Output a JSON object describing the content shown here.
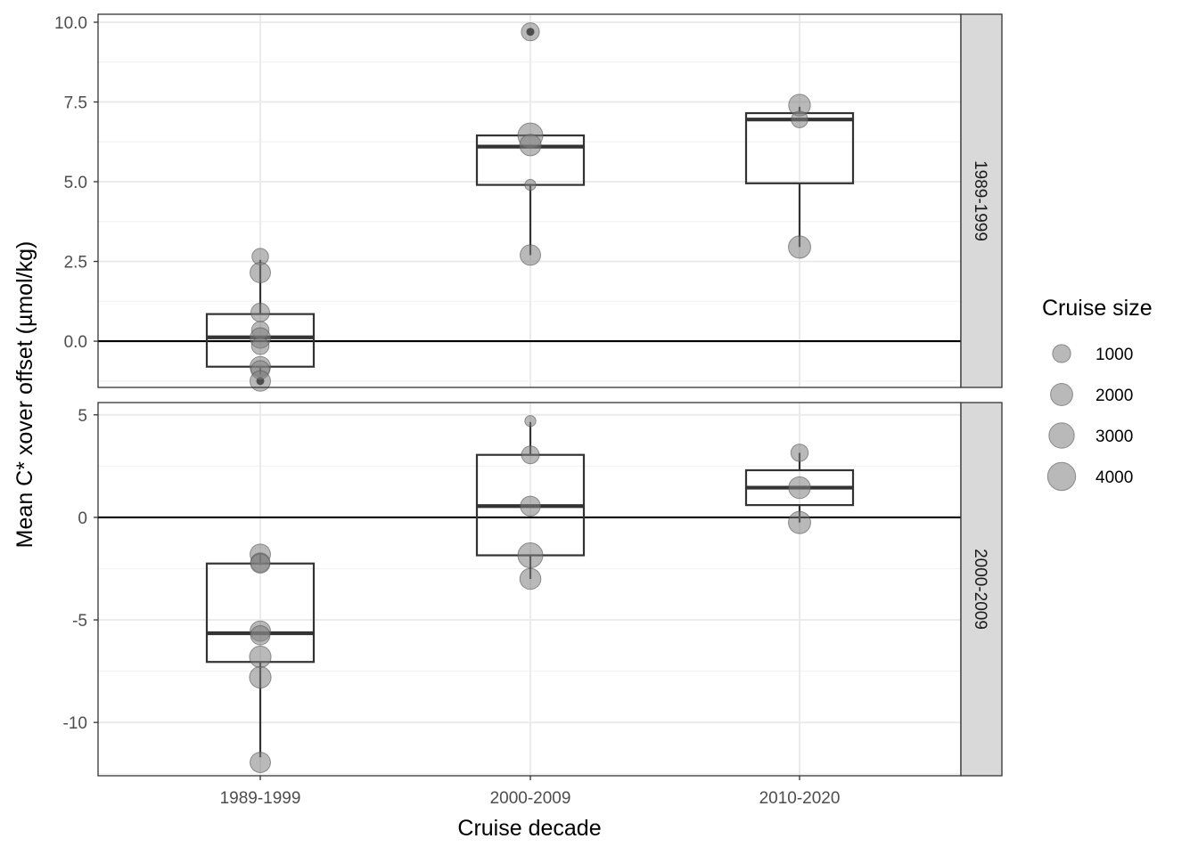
{
  "chart_data": {
    "type": "boxplot",
    "xlabel": "Cruise decade",
    "ylabel": "Mean C* xover offset (µmol/kg)",
    "categories": [
      "1989-1999",
      "2000-2009",
      "2010-2020"
    ],
    "legend": {
      "title": "Cruise size",
      "placement": "right",
      "entries": [
        {
          "label": "1000",
          "value": 1000
        },
        {
          "label": "2000",
          "value": 2000
        },
        {
          "label": "3000",
          "value": 3000
        },
        {
          "label": "4000",
          "value": 4000
        }
      ]
    },
    "colors": {
      "point_fill": "#808080",
      "point_stroke": "#555555",
      "box_stroke": "#333333",
      "grid_major": "#ebebeb",
      "grid_minor": "#f3f3f3",
      "strip_bg": "#d9d9d9",
      "zero_line": "#000000"
    },
    "panels": [
      {
        "strip_label": "1989-1999",
        "ylim": [
          -1.45,
          10.25
        ],
        "yticks": [
          0,
          2.5,
          5,
          7.5,
          10
        ],
        "ytick_labels": [
          "0.0",
          "2.5",
          "5.0",
          "7.5",
          "10.0"
        ],
        "hline": 0,
        "boxes": [
          {
            "category": "1989-1999",
            "q1": -0.8,
            "median": 0.12,
            "q3": 0.85,
            "whisker_low": -1.05,
            "whisker_high": 2.55
          },
          {
            "category": "2000-2009",
            "q1": 4.9,
            "median": 6.1,
            "q3": 6.45,
            "whisker_low": 2.7,
            "whisker_high": 6.45
          },
          {
            "category": "2010-2020",
            "q1": 4.95,
            "median": 6.95,
            "q3": 7.15,
            "whisker_low": 2.95,
            "whisker_high": 7.35
          }
        ],
        "outliers": [
          {
            "category": "1989-1999",
            "y": -1.25
          },
          {
            "category": "2000-2009",
            "y": 9.7
          }
        ],
        "points": [
          {
            "category": "1989-1999",
            "y": 2.65,
            "size": 1200
          },
          {
            "category": "1989-1999",
            "y": 2.15,
            "size": 2400
          },
          {
            "category": "1989-1999",
            "y": 0.9,
            "size": 1800
          },
          {
            "category": "1989-1999",
            "y": 0.35,
            "size": 1400
          },
          {
            "category": "1989-1999",
            "y": 0.1,
            "size": 2400
          },
          {
            "category": "1989-1999",
            "y": -0.15,
            "size": 1400
          },
          {
            "category": "1989-1999",
            "y": -0.8,
            "size": 2400
          },
          {
            "category": "1989-1999",
            "y": -0.9,
            "size": 1800
          },
          {
            "category": "1989-1999",
            "y": -1.25,
            "size": 2400
          },
          {
            "category": "2000-2009",
            "y": 9.7,
            "size": 1600
          },
          {
            "category": "2000-2009",
            "y": 6.45,
            "size": 4300
          },
          {
            "category": "2000-2009",
            "y": 6.15,
            "size": 2800
          },
          {
            "category": "2000-2009",
            "y": 4.9,
            "size": 200
          },
          {
            "category": "2000-2009",
            "y": 2.7,
            "size": 2400
          },
          {
            "category": "2010-2020",
            "y": 7.4,
            "size": 2900
          },
          {
            "category": "2010-2020",
            "y": 6.95,
            "size": 1200
          },
          {
            "category": "2010-2020",
            "y": 2.95,
            "size": 3100
          }
        ]
      },
      {
        "strip_label": "2000-2009",
        "ylim": [
          -12.6,
          5.6
        ],
        "yticks": [
          -10,
          -5,
          0,
          5
        ],
        "ytick_labels": [
          "-10",
          "-5",
          "0",
          "5"
        ],
        "hline": 0,
        "boxes": [
          {
            "category": "1989-1999",
            "q1": -7.05,
            "median": -5.65,
            "q3": -2.25,
            "whisker_low": -11.7,
            "whisker_high": -1.8
          },
          {
            "category": "2000-2009",
            "q1": -1.85,
            "median": 0.55,
            "q3": 3.05,
            "whisker_low": -3.0,
            "whisker_high": 4.65
          },
          {
            "category": "2010-2020",
            "q1": 0.6,
            "median": 1.45,
            "q3": 2.3,
            "whisker_low": -0.25,
            "whisker_high": 3.15
          }
        ],
        "outliers": [],
        "points": [
          {
            "category": "1989-1999",
            "y": -1.8,
            "size": 2400
          },
          {
            "category": "1989-1999",
            "y": -2.2,
            "size": 2000
          },
          {
            "category": "1989-1999",
            "y": -2.25,
            "size": 2000
          },
          {
            "category": "1989-1999",
            "y": -5.55,
            "size": 2400
          },
          {
            "category": "1989-1999",
            "y": -5.75,
            "size": 2000
          },
          {
            "category": "1989-1999",
            "y": -6.8,
            "size": 2800
          },
          {
            "category": "1989-1999",
            "y": -7.8,
            "size": 2800
          },
          {
            "category": "1989-1999",
            "y": -11.95,
            "size": 2400
          },
          {
            "category": "2000-2009",
            "y": 4.7,
            "size": 200
          },
          {
            "category": "2000-2009",
            "y": 3.05,
            "size": 1500
          },
          {
            "category": "2000-2009",
            "y": 0.55,
            "size": 2200
          },
          {
            "category": "2000-2009",
            "y": -1.85,
            "size": 4300
          },
          {
            "category": "2000-2009",
            "y": -3.0,
            "size": 2600
          },
          {
            "category": "2010-2020",
            "y": 3.15,
            "size": 1400
          },
          {
            "category": "2010-2020",
            "y": 1.45,
            "size": 2900
          },
          {
            "category": "2010-2020",
            "y": -0.25,
            "size": 3100
          }
        ]
      }
    ]
  }
}
